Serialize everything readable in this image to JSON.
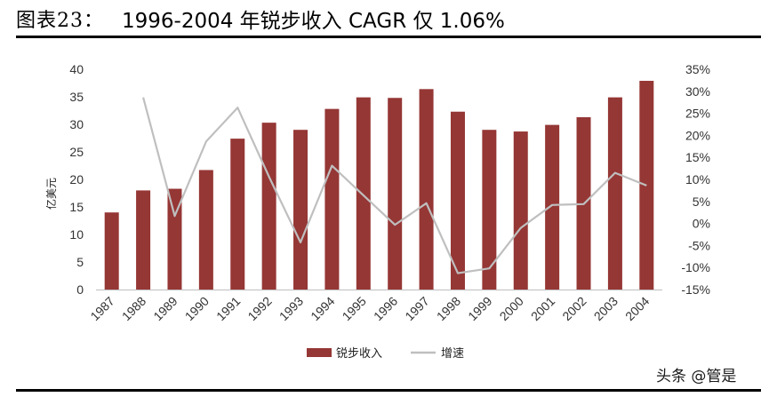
{
  "header": {
    "prefix": "图表23：",
    "title": "1996-2004 年锐步收入 CAGR 仅 1.06%"
  },
  "watermark": "头条 @管是",
  "colors": {
    "bar": "#953735",
    "line": "#BFBFBF",
    "rule": "#000000"
  },
  "chart_data": {
    "type": "bar+line",
    "categories": [
      "1987",
      "1988",
      "1989",
      "1990",
      "1991",
      "1992",
      "1993",
      "1994",
      "1995",
      "1996",
      "1997",
      "1998",
      "1999",
      "2000",
      "2001",
      "2002",
      "2003",
      "2004"
    ],
    "series": [
      {
        "name": "锐步收入",
        "type": "bar",
        "axis": "left",
        "values": [
          14.0,
          18.0,
          18.3,
          21.7,
          27.4,
          30.3,
          29.0,
          32.8,
          34.9,
          34.8,
          36.4,
          32.3,
          29.0,
          28.7,
          29.9,
          31.3,
          34.9,
          37.9
        ]
      },
      {
        "name": "增速",
        "type": "line",
        "axis": "right",
        "values": [
          null,
          28.6,
          1.7,
          18.6,
          26.3,
          10.6,
          -4.3,
          13.1,
          6.4,
          -0.3,
          4.6,
          -11.3,
          -10.2,
          -1.0,
          4.2,
          4.4,
          11.5,
          8.6
        ]
      }
    ],
    "y_left": {
      "label": "亿美元",
      "min": 0,
      "max": 40,
      "ticks": [
        "0",
        "5",
        "10",
        "15",
        "20",
        "25",
        "30",
        "35",
        "40"
      ]
    },
    "y_right": {
      "min": -15,
      "max": 35,
      "ticks": [
        "-15%",
        "-10%",
        "-5%",
        "0%",
        "5%",
        "10%",
        "15%",
        "20%",
        "25%",
        "30%",
        "35%"
      ]
    },
    "legend": [
      {
        "label": "锐步收入",
        "kind": "bar"
      },
      {
        "label": "增速",
        "kind": "line"
      }
    ],
    "legend_position": "bottom"
  }
}
